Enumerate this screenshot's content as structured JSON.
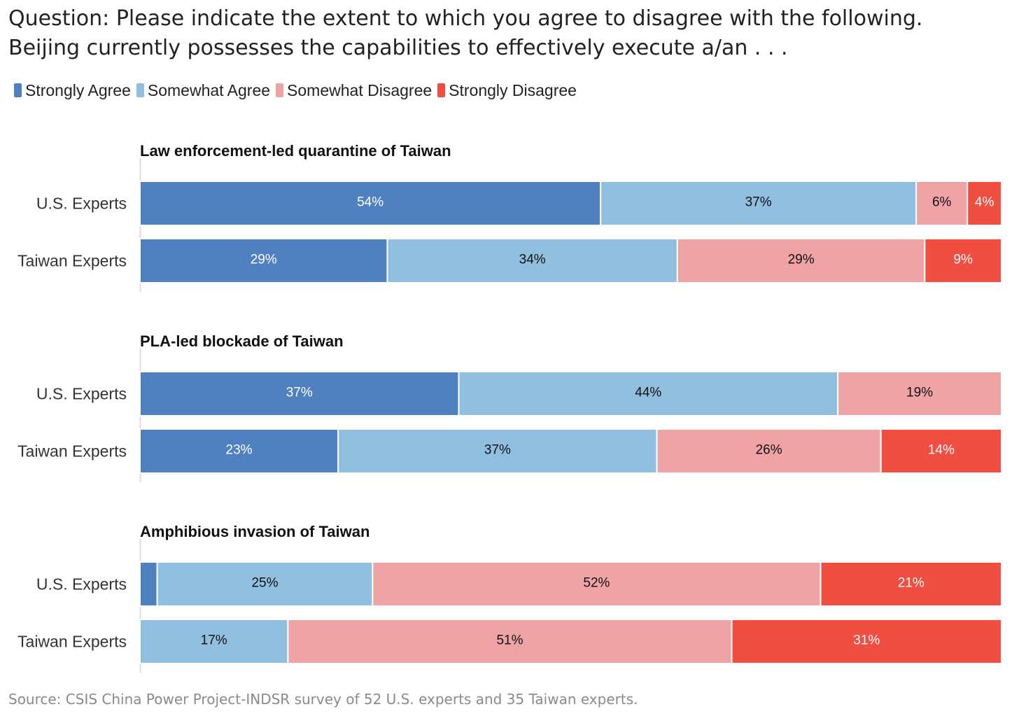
{
  "question": {
    "line1": "Question: Please indicate the extent to which you agree to disagree with the following.",
    "line2": "Beijing currently possesses the capabilities to effectively execute a/an . . ."
  },
  "source": "Source: CSIS China Power Project-INDSR survey of 52 U.S. experts and 35 Taiwan experts.",
  "chart_data": {
    "type": "bar",
    "orientation": "horizontal",
    "stacked": true,
    "scale": "percent",
    "xlim": [
      0,
      100
    ],
    "legend": {
      "placement": "top-left",
      "entries": [
        {
          "name": "Strongly Agree",
          "color": "#4f81c0"
        },
        {
          "name": "Somewhat Agree",
          "color": "#90bfe0"
        },
        {
          "name": "Somewhat Disagree",
          "color": "#f0a3a4"
        },
        {
          "name": "Strongly Disagree",
          "color": "#ef4e41"
        }
      ]
    },
    "label_colors": {
      "Strongly Agree": "#ffffff",
      "Somewhat Agree": "#111111",
      "Somewhat Disagree": "#111111",
      "Strongly Disagree": "#ffffff"
    },
    "panels": [
      {
        "title": "Law enforcement-led quarantine of Taiwan",
        "rows": [
          {
            "label": "U.S. Experts",
            "values": [
              54,
              37,
              6,
              4
            ],
            "labels": [
              "54%",
              "37%",
              "6%",
              "4%"
            ]
          },
          {
            "label": "Taiwan Experts",
            "values": [
              29,
              34,
              29,
              9
            ],
            "labels": [
              "29%",
              "34%",
              "29%",
              "9%"
            ]
          }
        ]
      },
      {
        "title": "PLA-led blockade of Taiwan",
        "rows": [
          {
            "label": "U.S. Experts",
            "values": [
              37,
              44,
              19,
              0
            ],
            "labels": [
              "37%",
              "44%",
              "19%",
              ""
            ]
          },
          {
            "label": "Taiwan Experts",
            "values": [
              23,
              37,
              26,
              14
            ],
            "labels": [
              "23%",
              "37%",
              "26%",
              "14%"
            ]
          }
        ]
      },
      {
        "title": "Amphibious invasion of Taiwan",
        "rows": [
          {
            "label": "U.S. Experts",
            "values": [
              2,
              25,
              52,
              21
            ],
            "labels": [
              "",
              "25%",
              "52%",
              "21%"
            ]
          },
          {
            "label": "Taiwan Experts",
            "values": [
              0,
              17,
              51,
              31
            ],
            "labels": [
              "",
              "17%",
              "51%",
              "31%"
            ]
          }
        ]
      }
    ]
  }
}
